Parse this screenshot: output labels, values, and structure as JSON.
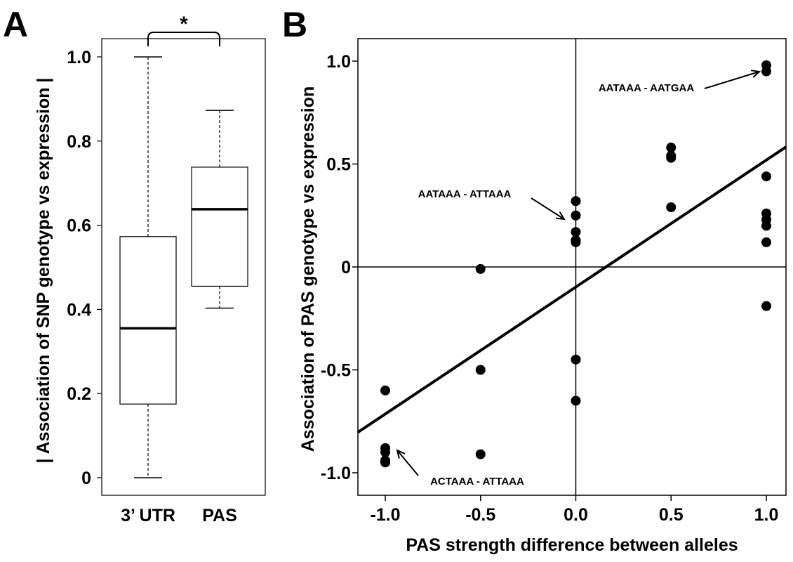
{
  "panel_a_label": "A",
  "panel_b_label": "B",
  "chart_data": [
    {
      "type": "box",
      "ylabel": "| Association of SNP genotype vs expression |",
      "ylim": [
        -0.03,
        1.05
      ],
      "yticks": [
        0,
        0.2,
        0.4,
        0.6,
        0.8,
        1.0
      ],
      "ytick_labels": [
        "0",
        "0.2",
        "0.4",
        "0.6",
        "0.8",
        "1.0"
      ],
      "categories": [
        "3’ UTR",
        "PAS"
      ],
      "boxes": [
        {
          "category": "3’ UTR",
          "min": 0.0,
          "q1": 0.175,
          "median": 0.355,
          "q3": 0.573,
          "max": 1.0
        },
        {
          "category": "PAS",
          "min": 0.403,
          "q1": 0.455,
          "median": 0.638,
          "q3": 0.738,
          "max": 0.873
        }
      ],
      "significance": {
        "label": "*",
        "between": [
          "3’ UTR",
          "PAS"
        ]
      }
    },
    {
      "type": "scatter",
      "xlabel": "PAS strength difference between alleles",
      "ylabel": "Association of PAS genotype vs expression",
      "xlim": [
        -1.1,
        1.1
      ],
      "ylim": [
        -1.1,
        1.1
      ],
      "xticks": [
        -1.0,
        -0.5,
        0.0,
        0.5,
        1.0
      ],
      "xtick_labels": [
        "-1.0",
        "-0.5",
        "0.0",
        "0.5",
        "1.0"
      ],
      "yticks": [
        -1.0,
        -0.5,
        0,
        0.5,
        1.0
      ],
      "ytick_labels": [
        "-1.0",
        "-0.5",
        "0",
        "0.5",
        "1.0"
      ],
      "points": [
        {
          "x": -1.0,
          "y": -0.6
        },
        {
          "x": -1.0,
          "y": -0.88
        },
        {
          "x": -1.0,
          "y": -0.9
        },
        {
          "x": -1.0,
          "y": -0.94
        },
        {
          "x": -1.0,
          "y": -0.95
        },
        {
          "x": -0.5,
          "y": -0.01
        },
        {
          "x": -0.5,
          "y": -0.5
        },
        {
          "x": -0.5,
          "y": -0.91
        },
        {
          "x": 0.0,
          "y": 0.32
        },
        {
          "x": 0.0,
          "y": 0.25
        },
        {
          "x": 0.0,
          "y": 0.17
        },
        {
          "x": 0.0,
          "y": 0.13
        },
        {
          "x": 0.0,
          "y": 0.12
        },
        {
          "x": 0.0,
          "y": -0.45
        },
        {
          "x": 0.0,
          "y": -0.65
        },
        {
          "x": 0.5,
          "y": 0.58
        },
        {
          "x": 0.5,
          "y": 0.54
        },
        {
          "x": 0.5,
          "y": 0.53
        },
        {
          "x": 0.5,
          "y": 0.29
        },
        {
          "x": 1.0,
          "y": 0.98
        },
        {
          "x": 1.0,
          "y": 0.95
        },
        {
          "x": 1.0,
          "y": 0.44
        },
        {
          "x": 1.0,
          "y": 0.26
        },
        {
          "x": 1.0,
          "y": 0.23
        },
        {
          "x": 1.0,
          "y": 0.2
        },
        {
          "x": 1.0,
          "y": 0.12
        },
        {
          "x": 1.0,
          "y": -0.19
        }
      ],
      "regression_line": {
        "slope": 0.63,
        "intercept": -0.11
      },
      "reference_lines": {
        "x": 0,
        "y": 0
      },
      "annotations": [
        {
          "text": "AATAAA - AATGAA",
          "points_to": {
            "x": 1.0,
            "y": 0.97
          }
        },
        {
          "text": "AATAAA - ATTAAA",
          "points_to": {
            "x": 0.0,
            "y": 0.24
          }
        },
        {
          "text": "ACTAAA - ATTAAA",
          "points_to": {
            "x": -1.0,
            "y": -0.88
          }
        }
      ]
    }
  ]
}
